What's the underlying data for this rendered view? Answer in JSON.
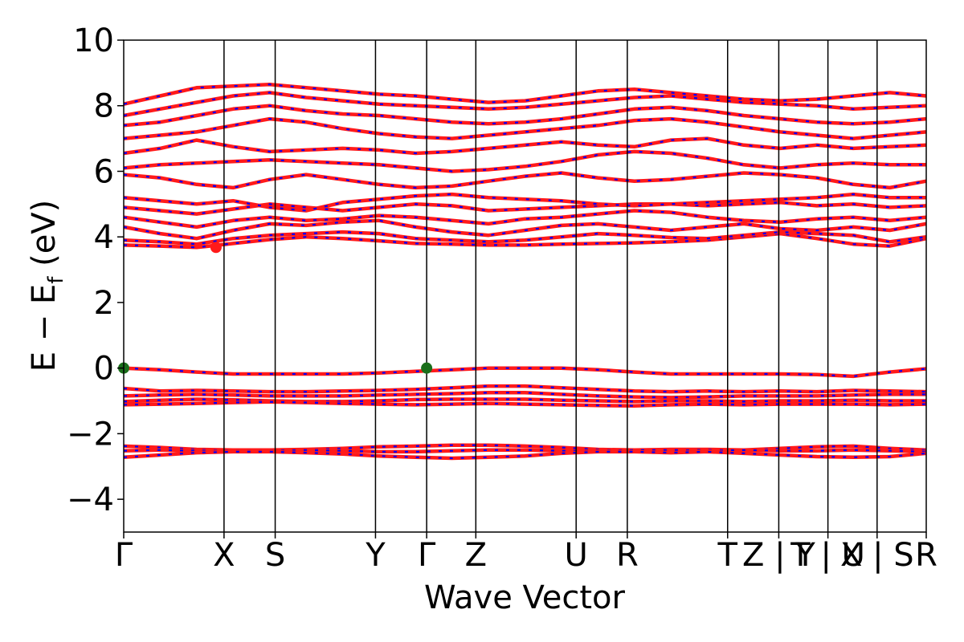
{
  "chart_data": {
    "type": "line",
    "title": "",
    "xlabel": "Wave Vector",
    "ylabel_main": "E − E",
    "ylabel_sub": "f",
    "ylabel_unit": " (eV)",
    "ylim": [
      -5,
      10
    ],
    "yticks": [
      -4,
      -2,
      0,
      2,
      4,
      6,
      8,
      10
    ],
    "ytick_labels": [
      "−4",
      "−2",
      "0",
      "2",
      "4",
      "6",
      "8",
      "10"
    ],
    "grid": false,
    "kpath": [
      {
        "label": "Γ",
        "k": 0.0
      },
      {
        "label": "X",
        "k": 1.0
      },
      {
        "label": "S",
        "k": 1.51
      },
      {
        "label": "Y",
        "k": 2.51
      },
      {
        "label": "Γ",
        "k": 3.02
      },
      {
        "label": "Z",
        "k": 3.51
      },
      {
        "label": "U",
        "k": 4.51
      },
      {
        "label": "R",
        "k": 5.02
      },
      {
        "label": "T",
        "k": 6.02
      },
      {
        "label": "Z | Y",
        "k": 6.53
      },
      {
        "label": "T | U",
        "k": 7.02
      },
      {
        "label": "X | S",
        "k": 7.51
      },
      {
        "label": "R",
        "k": 8.0
      }
    ],
    "kmax": 8.0,
    "series_colors": {
      "spin_up": "#ff1a1a",
      "spin_down": "#0000ff"
    },
    "valence_bands": [
      [
        0.0,
        -0.05,
        -0.12,
        -0.18,
        -0.18,
        -0.18,
        -0.18,
        -0.15,
        -0.1,
        -0.05,
        0.0,
        0.0,
        0.0,
        -0.05,
        -0.12,
        -0.18,
        -0.18,
        -0.18,
        -0.18,
        -0.2,
        -0.25,
        -0.12,
        -0.02
      ],
      [
        -0.62,
        -0.7,
        -0.68,
        -0.7,
        -0.72,
        -0.72,
        -0.7,
        -0.68,
        -0.65,
        -0.6,
        -0.55,
        -0.55,
        -0.6,
        -0.65,
        -0.7,
        -0.72,
        -0.7,
        -0.72,
        -0.7,
        -0.72,
        -0.68,
        -0.7,
        -0.72
      ],
      [
        -0.85,
        -0.82,
        -0.8,
        -0.82,
        -0.85,
        -0.85,
        -0.85,
        -0.82,
        -0.8,
        -0.78,
        -0.75,
        -0.75,
        -0.8,
        -0.85,
        -0.88,
        -0.9,
        -0.88,
        -0.85,
        -0.85,
        -0.85,
        -0.82,
        -0.8,
        -0.8
      ],
      [
        -1.02,
        -0.98,
        -0.95,
        -0.97,
        -1.0,
        -1.02,
        -1.02,
        -1.0,
        -0.96,
        -0.95,
        -0.95,
        -0.95,
        -0.98,
        -1.0,
        -1.02,
        -1.0,
        -1.0,
        -1.02,
        -1.0,
        -1.0,
        -0.98,
        -1.0,
        -1.0
      ],
      [
        -1.12,
        -1.1,
        -1.08,
        -1.05,
        -1.03,
        -1.05,
        -1.08,
        -1.1,
        -1.12,
        -1.1,
        -1.08,
        -1.1,
        -1.12,
        -1.14,
        -1.15,
        -1.12,
        -1.1,
        -1.12,
        -1.1,
        -1.1,
        -1.1,
        -1.12,
        -1.1
      ],
      [
        -2.38,
        -2.42,
        -2.48,
        -2.5,
        -2.5,
        -2.48,
        -2.45,
        -2.4,
        -2.38,
        -2.35,
        -2.35,
        -2.38,
        -2.42,
        -2.48,
        -2.5,
        -2.48,
        -2.48,
        -2.5,
        -2.45,
        -2.4,
        -2.38,
        -2.45,
        -2.5
      ],
      [
        -2.52,
        -2.5,
        -2.52,
        -2.52,
        -2.52,
        -2.5,
        -2.52,
        -2.55,
        -2.55,
        -2.52,
        -2.5,
        -2.5,
        -2.52,
        -2.52,
        -2.5,
        -2.5,
        -2.52,
        -2.5,
        -2.52,
        -2.52,
        -2.5,
        -2.52,
        -2.55
      ],
      [
        -2.72,
        -2.65,
        -2.58,
        -2.55,
        -2.55,
        -2.58,
        -2.62,
        -2.68,
        -2.72,
        -2.75,
        -2.72,
        -2.68,
        -2.6,
        -2.55,
        -2.55,
        -2.58,
        -2.55,
        -2.6,
        -2.65,
        -2.7,
        -2.72,
        -2.7,
        -2.6
      ]
    ],
    "conduction_bands": [
      [
        3.75,
        3.72,
        3.68,
        3.8,
        3.92,
        4.0,
        3.95,
        3.88,
        3.8,
        3.78,
        3.75,
        3.75,
        3.78,
        3.8,
        3.82,
        3.85,
        3.9,
        4.0,
        4.1,
        3.95,
        3.78,
        3.72,
        3.95
      ],
      [
        3.9,
        3.85,
        3.78,
        3.95,
        4.05,
        4.1,
        4.15,
        4.1,
        3.95,
        3.9,
        3.85,
        3.9,
        4.0,
        4.1,
        4.05,
        3.98,
        3.95,
        4.05,
        4.15,
        4.1,
        4.05,
        3.85,
        4.0
      ],
      [
        4.3,
        4.1,
        3.95,
        4.2,
        4.4,
        4.35,
        4.45,
        4.5,
        4.3,
        4.15,
        4.05,
        4.2,
        4.35,
        4.4,
        4.3,
        4.2,
        4.3,
        4.4,
        4.25,
        4.2,
        4.3,
        4.2,
        4.4
      ],
      [
        4.6,
        4.45,
        4.3,
        4.5,
        4.6,
        4.5,
        4.55,
        4.65,
        4.6,
        4.5,
        4.4,
        4.55,
        4.6,
        4.7,
        4.8,
        4.75,
        4.6,
        4.5,
        4.45,
        4.55,
        4.6,
        4.5,
        4.6
      ],
      [
        4.9,
        4.8,
        4.7,
        4.85,
        5.0,
        4.9,
        4.8,
        4.9,
        5.0,
        4.95,
        4.8,
        4.85,
        4.9,
        4.95,
        5.0,
        5.0,
        4.95,
        5.0,
        5.05,
        4.95,
        5.0,
        4.9,
        4.95
      ],
      [
        5.2,
        5.1,
        5.0,
        5.1,
        4.9,
        4.8,
        5.05,
        5.15,
        5.25,
        5.3,
        5.2,
        5.15,
        5.1,
        5.0,
        4.95,
        5.0,
        5.05,
        5.1,
        5.15,
        5.2,
        5.3,
        5.2,
        5.2
      ],
      [
        5.9,
        5.8,
        5.6,
        5.5,
        5.75,
        5.9,
        5.75,
        5.6,
        5.5,
        5.55,
        5.7,
        5.85,
        5.95,
        5.8,
        5.7,
        5.75,
        5.85,
        5.95,
        5.9,
        5.8,
        5.6,
        5.5,
        5.7
      ],
      [
        6.1,
        6.2,
        6.25,
        6.3,
        6.35,
        6.3,
        6.25,
        6.2,
        6.1,
        6.0,
        6.05,
        6.15,
        6.3,
        6.5,
        6.6,
        6.55,
        6.4,
        6.2,
        6.1,
        6.2,
        6.25,
        6.2,
        6.2
      ],
      [
        6.55,
        6.7,
        6.95,
        6.75,
        6.6,
        6.65,
        6.7,
        6.65,
        6.55,
        6.6,
        6.7,
        6.8,
        6.9,
        6.8,
        6.75,
        6.95,
        7.0,
        6.8,
        6.7,
        6.8,
        6.7,
        6.75,
        6.8
      ],
      [
        7.0,
        7.1,
        7.2,
        7.4,
        7.6,
        7.5,
        7.3,
        7.15,
        7.05,
        7.0,
        7.1,
        7.2,
        7.3,
        7.4,
        7.55,
        7.6,
        7.5,
        7.35,
        7.2,
        7.1,
        7.0,
        7.1,
        7.2
      ],
      [
        7.4,
        7.5,
        7.7,
        7.9,
        8.0,
        7.85,
        7.75,
        7.7,
        7.6,
        7.5,
        7.45,
        7.5,
        7.6,
        7.75,
        7.9,
        7.95,
        7.85,
        7.7,
        7.6,
        7.5,
        7.45,
        7.5,
        7.6
      ],
      [
        7.7,
        7.9,
        8.1,
        8.3,
        8.4,
        8.25,
        8.15,
        8.05,
        8.0,
        7.95,
        7.9,
        7.95,
        8.05,
        8.15,
        8.25,
        8.3,
        8.2,
        8.1,
        8.05,
        8.0,
        7.9,
        7.95,
        8.0
      ],
      [
        8.05,
        8.3,
        8.55,
        8.6,
        8.65,
        8.55,
        8.45,
        8.35,
        8.3,
        8.2,
        8.1,
        8.15,
        8.3,
        8.45,
        8.5,
        8.4,
        8.3,
        8.2,
        8.15,
        8.2,
        8.3,
        8.4,
        8.3
      ]
    ],
    "markers": [
      {
        "name": "VBM",
        "k": 0.0,
        "e": 0.0,
        "color": "#1a6e1a"
      },
      {
        "name": "VBM",
        "k": 3.02,
        "e": 0.0,
        "color": "#1a6e1a"
      },
      {
        "name": "CBM",
        "k": 0.92,
        "e": 3.68,
        "color": "#ff1a1a"
      }
    ]
  }
}
